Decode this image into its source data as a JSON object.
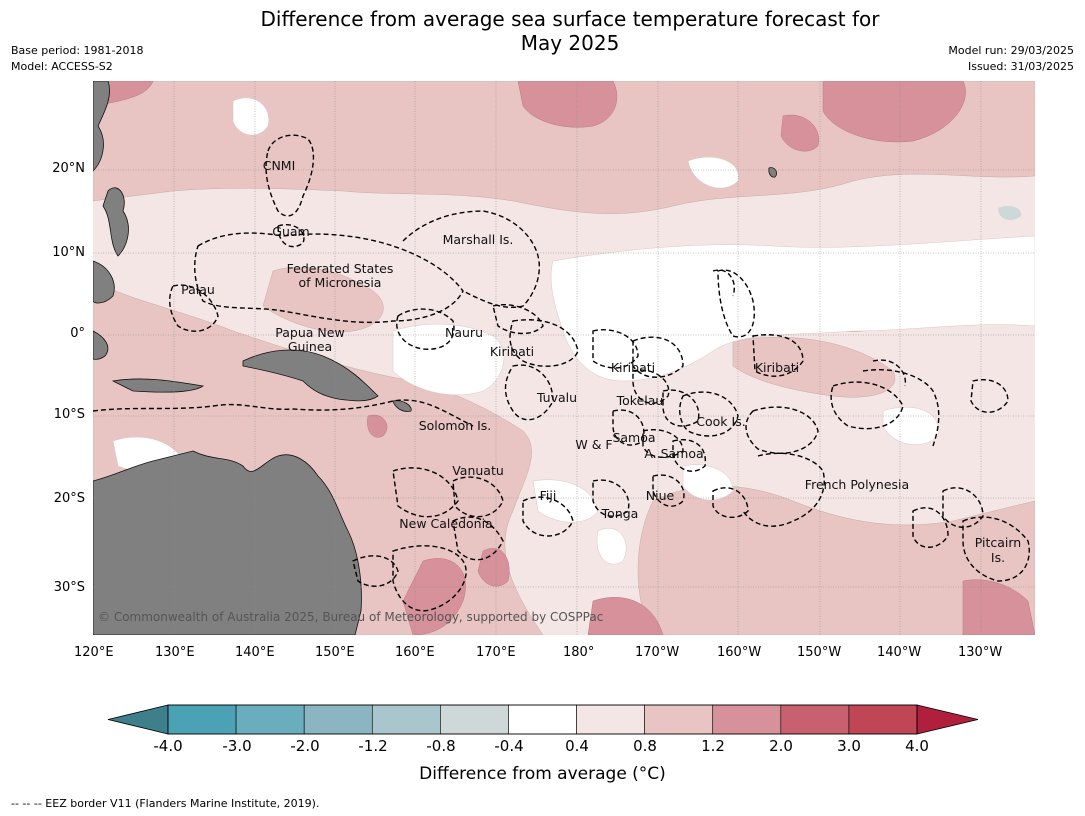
{
  "title_line1": "Difference from average sea surface temperature forecast for",
  "title_line2": "May 2025",
  "meta_left": {
    "base_period": "Base period: 1981-2018",
    "model": "Model: ACCESS-S2"
  },
  "meta_right": {
    "model_run": "Model run: 29/03/2025",
    "issued": "Issued: 31/03/2025"
  },
  "map": {
    "lat_labels": [
      "20°N",
      "10°N",
      "0°",
      "10°S",
      "20°S",
      "30°S"
    ],
    "lon_labels": [
      "120°E",
      "130°E",
      "140°E",
      "150°E",
      "160°E",
      "170°E",
      "180°",
      "170°W",
      "160°W",
      "150°W",
      "140°W",
      "130°W"
    ],
    "regions": {
      "cnmi": "CNMI",
      "guam": "Guam",
      "marshall": "Marshall Is.",
      "fsm_1": "Federated States",
      "fsm_2": "of Micronesia",
      "palau": "Palau",
      "nauru": "Nauru",
      "png_1": "Papua New",
      "png_2": "Guinea",
      "kiribati_w": "Kiribati",
      "kiribati_c": "Kiribati",
      "kiribati_e": "Kiribati",
      "tuvalu": "Tuvalu",
      "tokelau": "Tokelau",
      "cook": "Cook Is.",
      "solomon": "Solomon Is.",
      "samoa": "Samoa",
      "wf": "W & F",
      "asamoa": "A. Samoa",
      "vanuatu": "Vanuatu",
      "fiji": "Fiji",
      "niue": "Niue",
      "tonga": "Tonga",
      "french_polynesia": "French Polynesia",
      "new_caledonia": "New Caledonia",
      "pitcairn_1": "Pitcairn",
      "pitcairn_2": "Is."
    },
    "copyright": "© Commonwealth of Australia 2025, Bureau of Meteorology, supported by COSPPac",
    "colors": {
      "land": "#808080",
      "c_04_08": "#f5e6e6",
      "c_08_12": "#e8c5c3",
      "c_12_20": "#d6919a",
      "c_20_30": "#c96070",
      "neutral": "#ffffff",
      "cool": "#cfd8d8",
      "eez": "#000000"
    }
  },
  "colorbar": {
    "tick_labels": [
      "-4.0",
      "-3.0",
      "-2.0",
      "-1.2",
      "-0.8",
      "-0.4",
      "0.4",
      "0.8",
      "1.2",
      "2.0",
      "3.0",
      "4.0"
    ],
    "colors": [
      "#3d7f8a",
      "#4aa2b4",
      "#6aadbd",
      "#8ab5c1",
      "#a8c6cb",
      "#cfd8d8",
      "#ffffff",
      "#f5e6e6",
      "#e8c5c3",
      "#d6919a",
      "#c96070",
      "#c04555",
      "#b0203c"
    ],
    "label": "Difference from average (°C)"
  },
  "footnote": "--  --  -- EEZ border V11 (Flanders Marine Institute, 2019)."
}
